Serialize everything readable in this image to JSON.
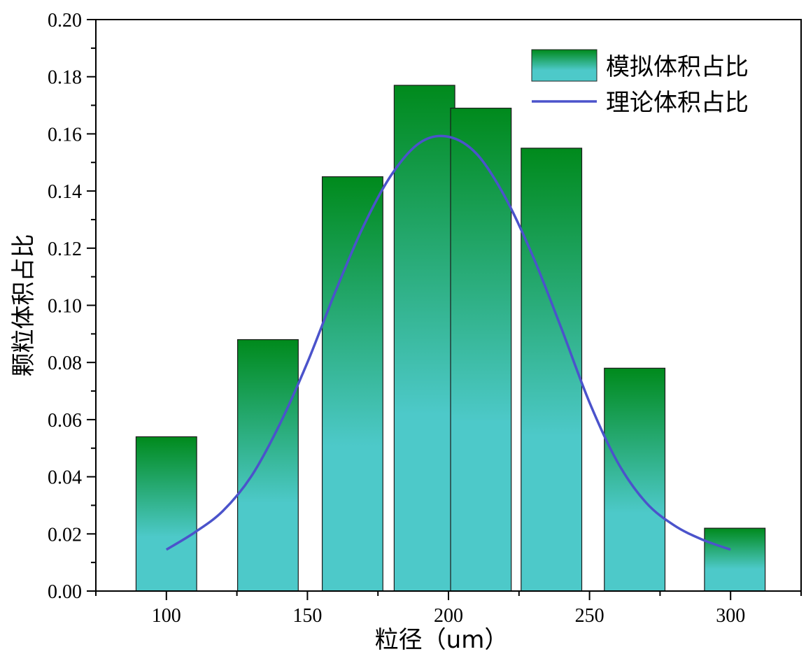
{
  "chart_data": {
    "type": "bar",
    "xlabel": "粒径（um）",
    "ylabel": "颗粒体积占比",
    "xlim": [
      75,
      325
    ],
    "ylim": [
      0,
      0.2
    ],
    "x_ticks": [
      100,
      150,
      200,
      250,
      300
    ],
    "x_tick_labels": [
      "100",
      "150",
      "200",
      "250",
      "300"
    ],
    "y_ticks": [
      0.0,
      0.02,
      0.04,
      0.06,
      0.08,
      0.1,
      0.12,
      0.14,
      0.16,
      0.18,
      0.2
    ],
    "y_tick_labels": [
      "0.00",
      "0.02",
      "0.04",
      "0.06",
      "0.08",
      "0.10",
      "0.12",
      "0.14",
      "0.16",
      "0.18",
      "0.20"
    ],
    "grid": false,
    "legend_position": "top-right",
    "series": [
      {
        "name": "模拟体积占比",
        "kind": "bar",
        "bar_width": 21.5,
        "colors": {
          "top": "#008A1C",
          "bottom": "#4DC9C9"
        },
        "x": [
          100,
          136,
          166,
          191.5,
          211.5,
          236.5,
          266,
          301.5
        ],
        "values": [
          0.054,
          0.088,
          0.145,
          0.177,
          0.169,
          0.155,
          0.078,
          0.022
        ]
      },
      {
        "name": "理论体积占比",
        "kind": "line",
        "color": "#4B53CB",
        "x": [
          100,
          110,
          120,
          130,
          140,
          150,
          160,
          170,
          180,
          190,
          200,
          210,
          220,
          230,
          240,
          250,
          260,
          270,
          280,
          290,
          300
        ],
        "values": [
          0.0145,
          0.0205,
          0.028,
          0.04,
          0.058,
          0.08,
          0.105,
          0.128,
          0.146,
          0.157,
          0.159,
          0.153,
          0.138,
          0.117,
          0.092,
          0.066,
          0.045,
          0.031,
          0.023,
          0.018,
          0.0145
        ]
      }
    ]
  }
}
